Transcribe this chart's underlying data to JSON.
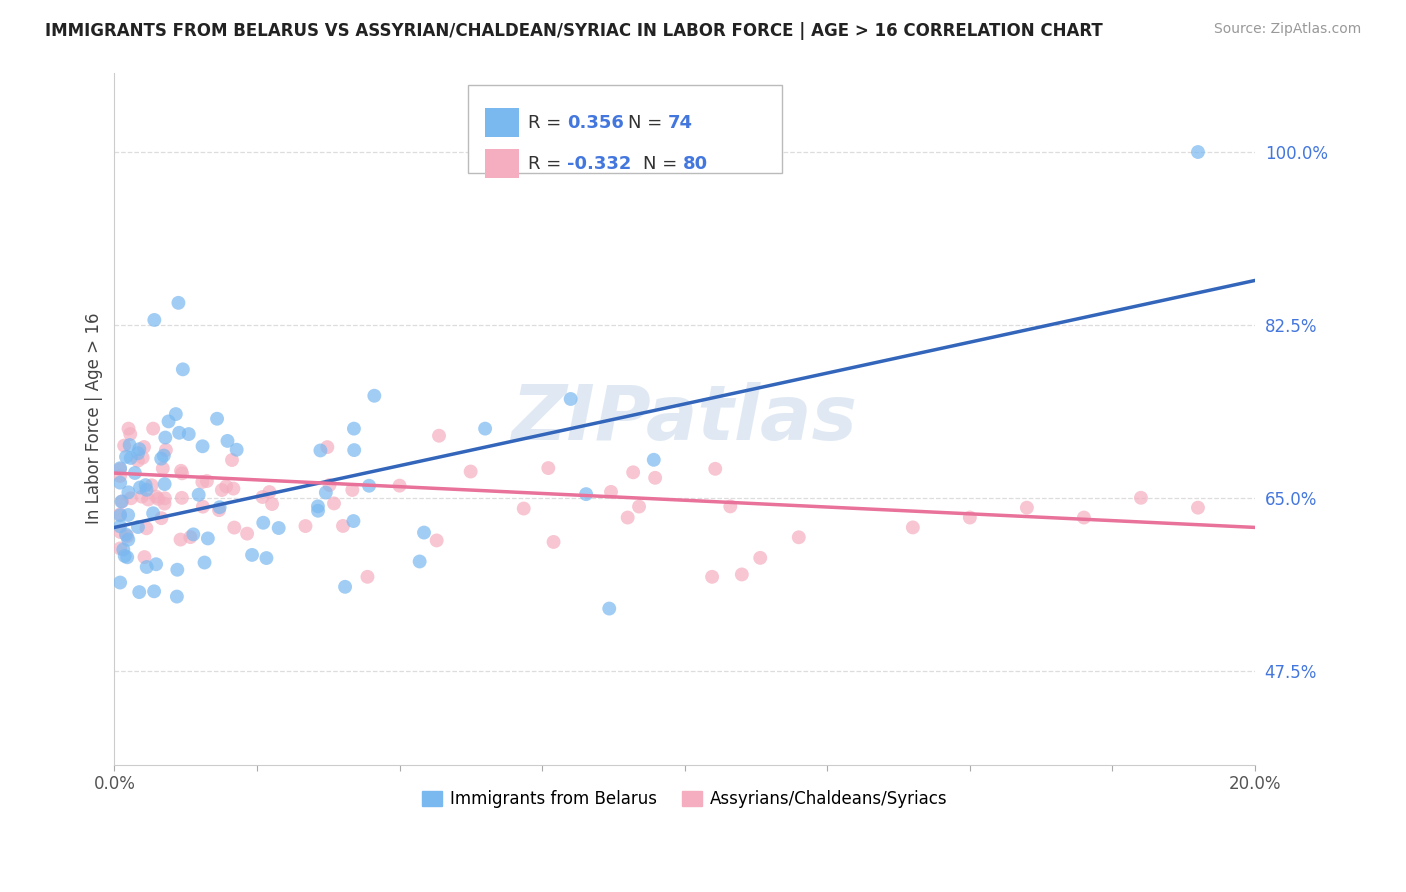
{
  "title": "IMMIGRANTS FROM BELARUS VS ASSYRIAN/CHALDEAN/SYRIAC IN LABOR FORCE | AGE > 16 CORRELATION CHART",
  "source": "Source: ZipAtlas.com",
  "ylabel": "In Labor Force | Age > 16",
  "x_min": 0.0,
  "x_max": 0.2,
  "y_min": 0.38,
  "y_max": 1.08,
  "y_ticks": [
    0.475,
    0.65,
    0.825,
    1.0
  ],
  "y_tick_labels": [
    "47.5%",
    "65.0%",
    "82.5%",
    "100.0%"
  ],
  "x_ticks": [
    0.0,
    0.025,
    0.05,
    0.075,
    0.1,
    0.125,
    0.15,
    0.175,
    0.2
  ],
  "x_tick_labels_show": [
    "0.0%",
    "",
    "",
    "",
    "",
    "",
    "",
    "",
    "20.0%"
  ],
  "blue_R": 0.356,
  "blue_N": 74,
  "pink_R": -0.332,
  "pink_N": 80,
  "blue_color": "#7ab8f0",
  "pink_color": "#f4aec0",
  "blue_line_color": "#3366bb",
  "pink_line_color": "#e8729a",
  "blue_line_y0": 0.62,
  "blue_line_y1": 0.87,
  "pink_line_y0": 0.675,
  "pink_line_y1": 0.62,
  "watermark": "ZIPatlas",
  "legend_label_blue": "Immigrants from Belarus",
  "legend_label_pink": "Assyrians/Chaldeans/Syriacs",
  "bg": "#ffffff",
  "grid_color": "#dddddd",
  "r_color": "#4477dd"
}
